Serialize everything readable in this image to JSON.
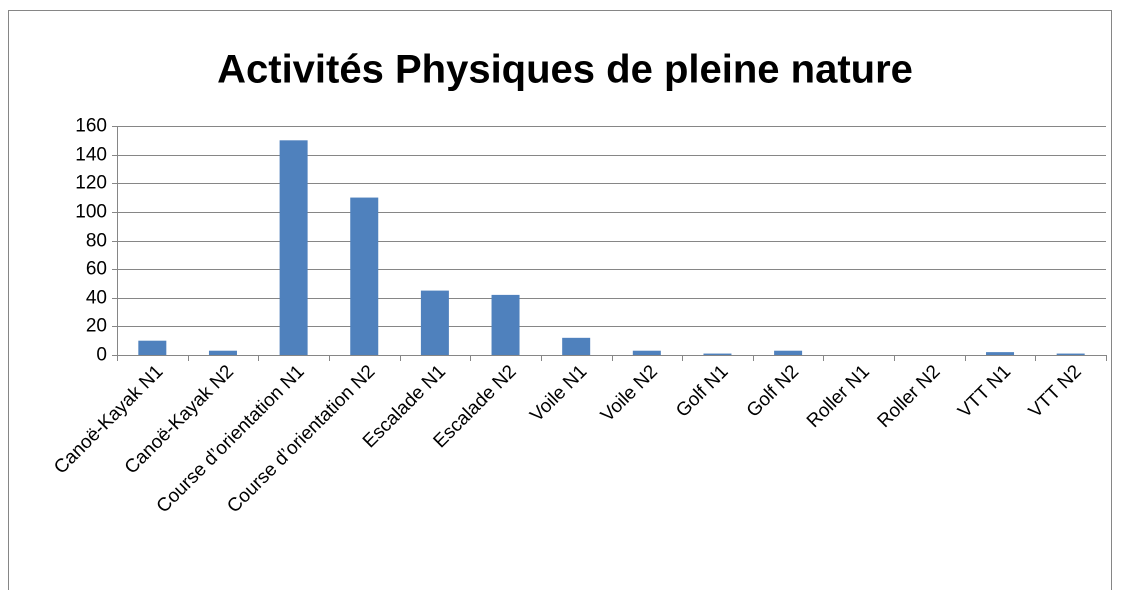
{
  "chart_data": {
    "type": "bar",
    "title": "Activités Physiques de pleine nature",
    "categories": [
      "Canoë-Kayak N1",
      "Canoë-Kayak N2",
      "Course d’orientation N1",
      "Course d’orientation N2",
      "Escalade N1",
      "Escalade N2",
      "Voile N1",
      "Voile N2",
      "Golf N1",
      "Golf N2",
      "Roller N1",
      "Roller N2",
      "VTT N1",
      "VTT N2"
    ],
    "values": [
      10,
      3,
      150,
      110,
      45,
      42,
      12,
      3,
      1,
      3,
      0,
      0,
      2,
      1
    ],
    "color": "#4f81bd",
    "ylim": [
      0,
      160
    ],
    "yticks": [
      0,
      20,
      40,
      60,
      80,
      100,
      120,
      140,
      160
    ],
    "grid": true
  }
}
